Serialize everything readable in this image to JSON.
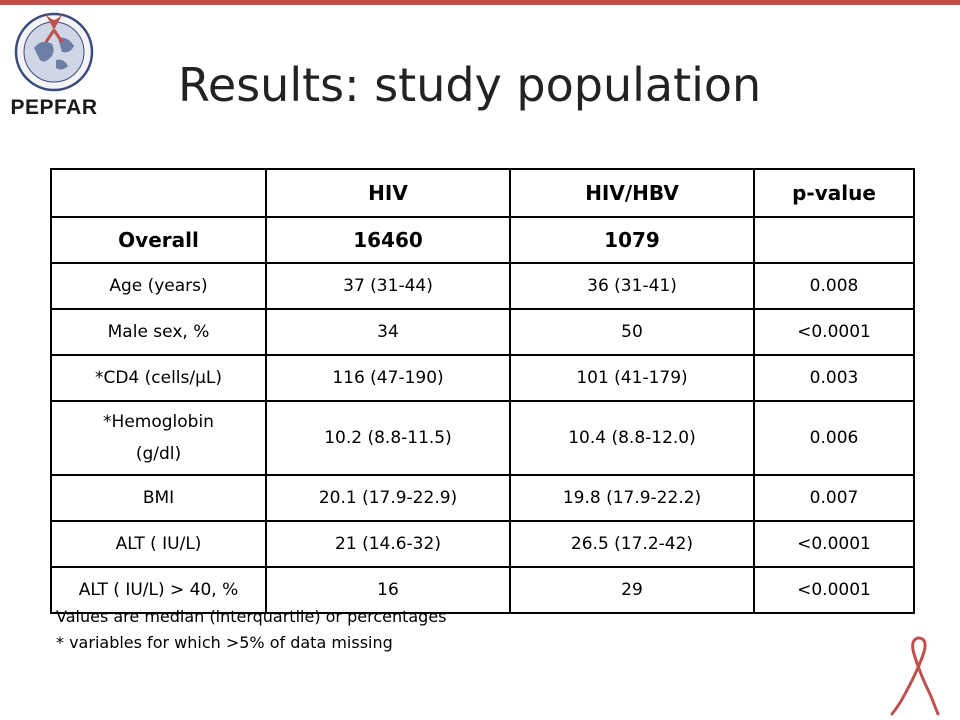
{
  "logo": {
    "text": "PEPFAR"
  },
  "title": "Results: study population",
  "table": {
    "header": [
      "",
      "HIV",
      "HIV/HBV",
      "p-value"
    ],
    "overall": [
      "Overall",
      "16460",
      "1079",
      ""
    ],
    "rows": [
      [
        "Age (years)",
        "37 (31-44)",
        "36 (31-41)",
        "0.008"
      ],
      [
        "Male sex, %",
        "34",
        "50",
        "<0.0001"
      ],
      [
        "*CD4 (cells/µL)",
        "116 (47-190)",
        "101 (41-179)",
        "0.003"
      ],
      [
        "*Hemoglobin (g/dl)",
        "10.2 (8.8-11.5)",
        "10.4 (8.8-12.0)",
        "0.006"
      ],
      [
        "BMI",
        "20.1 (17.9-22.9)",
        "19.8 (17.9-22.2)",
        "0.007"
      ],
      [
        "ALT ( IU/L)",
        "21 (14.6-32)",
        "26.5 (17.2-42)",
        "<0.0001"
      ],
      [
        "ALT ( IU/L) > 40, %",
        "16",
        "29",
        "<0.0001"
      ]
    ]
  },
  "footnotes": [
    "Values are median (interquartile) or percentages",
    "* variables for which >5% of data missing"
  ],
  "colors": {
    "accent": "#c0504d",
    "ribbon": "#c0504d"
  }
}
